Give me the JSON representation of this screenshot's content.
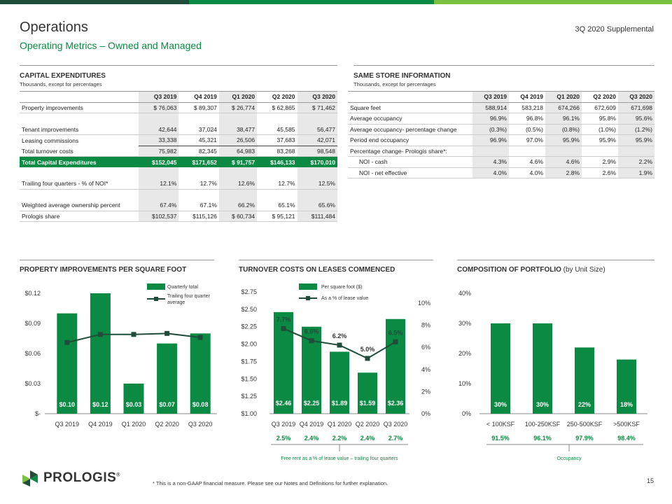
{
  "header": {
    "title": "Operations",
    "subtitle": "Operating Metrics – Owned and Managed",
    "supplemental": "3Q 2020 Supplemental"
  },
  "colors": {
    "green": "#0a8a42",
    "dark_green": "#1f4d3a",
    "line": "#1f4d3a",
    "shade": "#e8e8e8"
  },
  "capex": {
    "heading": "CAPITAL EXPENDITURES",
    "subheading": "Thousands, except for percentages",
    "columns": [
      "Q3 2019",
      "Q4 2019",
      "Q1 2020",
      "Q2 2020",
      "Q3 2020"
    ],
    "rows": [
      {
        "label": "Property improvements",
        "values": [
          "$ 76,063",
          "$ 89,307",
          "$ 26,774",
          "$ 62,865",
          "$ 71,462"
        ],
        "style": "rowline"
      },
      {
        "label": "",
        "values": [
          "",
          "",
          "",
          "",
          ""
        ],
        "style": "blank"
      },
      {
        "label": "Tenant improvements",
        "values": [
          "42,644",
          "37,024",
          "38,477",
          "45,585",
          "56,477"
        ],
        "style": "rowline"
      },
      {
        "label": "Leasing commissions",
        "values": [
          "33,338",
          "45,321",
          "26,506",
          "37,683",
          "42,071"
        ],
        "style": "underline"
      },
      {
        "label": "Total turnover costs",
        "values": [
          "75,982",
          "82,345",
          "64,983",
          "83,268",
          "98,548"
        ],
        "style": "rowline"
      },
      {
        "label": "Total Capital Expenditures",
        "values": [
          "$152,045",
          "$171,652",
          "$ 91,757",
          "$146,133",
          "$170,010"
        ],
        "style": "total"
      },
      {
        "label": "",
        "values": [
          "",
          "",
          "",
          "",
          ""
        ],
        "style": "blank"
      },
      {
        "label": "Trailing four quarters - % of NOI*",
        "values": [
          "12.1%",
          "12.7%",
          "12.6%",
          "12.7%",
          "12.5%"
        ],
        "style": "rowline"
      },
      {
        "label": "",
        "values": [
          "",
          "",
          "",
          "",
          ""
        ],
        "style": "blank"
      },
      {
        "label": "Weighted average ownership percent",
        "values": [
          "67.4%",
          "67.1%",
          "66.2%",
          "65.1%",
          "65.6%"
        ],
        "style": "rowline"
      },
      {
        "label": "Prologis share",
        "values": [
          "$102,537",
          "$115,126",
          "$ 60,734",
          "$ 95,121",
          "$111,484"
        ],
        "style": "rowline"
      }
    ]
  },
  "same_store": {
    "heading": "SAME STORE INFORMATION",
    "subheading": "Thousands, except for percentages",
    "columns": [
      "Q3 2019",
      "Q4 2019",
      "Q1 2020",
      "Q2 2020",
      "Q3 2020"
    ],
    "rows": [
      {
        "label": "Square feet",
        "values": [
          "588,914",
          "583,218",
          "674,266",
          "672,609",
          "671,698"
        ],
        "indent": false
      },
      {
        "label": "Average occupancy",
        "values": [
          "96.9%",
          "96.8%",
          "96.1%",
          "95.8%",
          "95.6%"
        ],
        "indent": false
      },
      {
        "label": "Average occupancy- percentage change",
        "values": [
          "(0.3%)",
          "(0.5%)",
          "(0.8%)",
          "(1.0%)",
          "(1.2%)"
        ],
        "indent": false
      },
      {
        "label": "Period end occupancy",
        "values": [
          "96.9%",
          "97.0%",
          "95.9%",
          "95.9%",
          "95.9%"
        ],
        "indent": false
      },
      {
        "label": "Percentage change- Prologis share*:",
        "values": [
          "",
          "",
          "",
          "",
          ""
        ],
        "indent": false
      },
      {
        "label": "NOI - cash",
        "values": [
          "4.3%",
          "4.6%",
          "4.6%",
          "2.9%",
          "2.2%"
        ],
        "indent": true
      },
      {
        "label": "NOI - net effective",
        "values": [
          "4.0%",
          "4.0%",
          "2.8%",
          "2.6%",
          "1.9%"
        ],
        "indent": true
      }
    ]
  },
  "chart_data": [
    {
      "type": "bar",
      "title": "PROPERTY IMPROVEMENTS PER SQUARE FOOT",
      "categories": [
        "Q3 2019",
        "Q4 2019",
        "Q1 2020",
        "Q2 2020",
        "Q3 2020"
      ],
      "series": [
        {
          "name": "Quarterly total",
          "type": "bar",
          "values": [
            0.1,
            0.12,
            0.03,
            0.07,
            0.08
          ],
          "labels": [
            "$0.10",
            "$0.12",
            "$0.03",
            "$0.07",
            "$0.08"
          ]
        },
        {
          "name": "Trailing four quarter average",
          "type": "line",
          "values": [
            0.071,
            0.079,
            0.079,
            0.08,
            0.076
          ]
        }
      ],
      "ylim": [
        0,
        0.12
      ],
      "yticks": [
        "$-",
        "$0.03",
        "$0.06",
        "$0.09",
        "$0.12"
      ],
      "legend": [
        "Quarterly  total",
        "Trailing four quarter average"
      ],
      "grid": false,
      "legend_position": "top-right"
    },
    {
      "type": "bar",
      "title": "TURNOVER COSTS ON LEASES COMMENCED",
      "categories": [
        "Q3 2019",
        "Q4 2019",
        "Q1 2020",
        "Q2 2020",
        "Q3 2020"
      ],
      "series": [
        {
          "name": "Per square foot ($)",
          "type": "bar",
          "values": [
            2.46,
            2.25,
            1.89,
            1.59,
            2.36
          ],
          "labels": [
            "$2.46",
            "$2.25",
            "$1.89",
            "$1.59",
            "$2.36"
          ]
        },
        {
          "name": "As a % of lease value",
          "type": "line",
          "axis": "right",
          "values": [
            7.7,
            6.6,
            6.2,
            5.0,
            6.5
          ],
          "labels": [
            "7.7%",
            "6.6%",
            "6.2%",
            "5.0%",
            "6.5%"
          ]
        }
      ],
      "ylim": [
        1.0,
        2.75
      ],
      "yticks": [
        "$1.00",
        "$1.25",
        "$1.50",
        "$1.75",
        "$2.00",
        "$2.25",
        "$2.50",
        "$2.75"
      ],
      "y2lim": [
        0,
        10
      ],
      "y2ticks": [
        "0%",
        "2%",
        "4%",
        "6%",
        "8%",
        "10%"
      ],
      "legend": [
        "Per square foot ($)",
        "As a % of lease value"
      ],
      "footer_values": [
        "2.5%",
        "2.4%",
        "2.2%",
        "2.4%",
        "2.7%"
      ],
      "footer_label": "Free rent as a % of lease value – trailing four quarters",
      "grid": false,
      "legend_position": "top"
    },
    {
      "type": "bar",
      "title": "COMPOSITION OF PORTFOLIO",
      "title_suffix": "(by Unit Size)",
      "categories": [
        "< 100KSF",
        "100-250KSF",
        "250-500KSF",
        ">500KSF"
      ],
      "series": [
        {
          "name": "Share of portfolio",
          "type": "bar",
          "values": [
            30,
            30,
            22,
            18
          ],
          "labels": [
            "30%",
            "30%",
            "22%",
            "18%"
          ]
        }
      ],
      "ylim": [
        0,
        40
      ],
      "yticks": [
        "0%",
        "10%",
        "20%",
        "30%",
        "40%"
      ],
      "footer_values": [
        "91.5%",
        "96.1%",
        "97.9%",
        "98.4%"
      ],
      "footer_label": "Occupancy",
      "grid": false
    }
  ],
  "footer": {
    "footnote": "* This is a non-GAAP financial measure.  Please see our Notes and Definitions for further explanation.",
    "page_number": "15",
    "logo_text": "PROLOGIS",
    "logo_reg": "®"
  }
}
